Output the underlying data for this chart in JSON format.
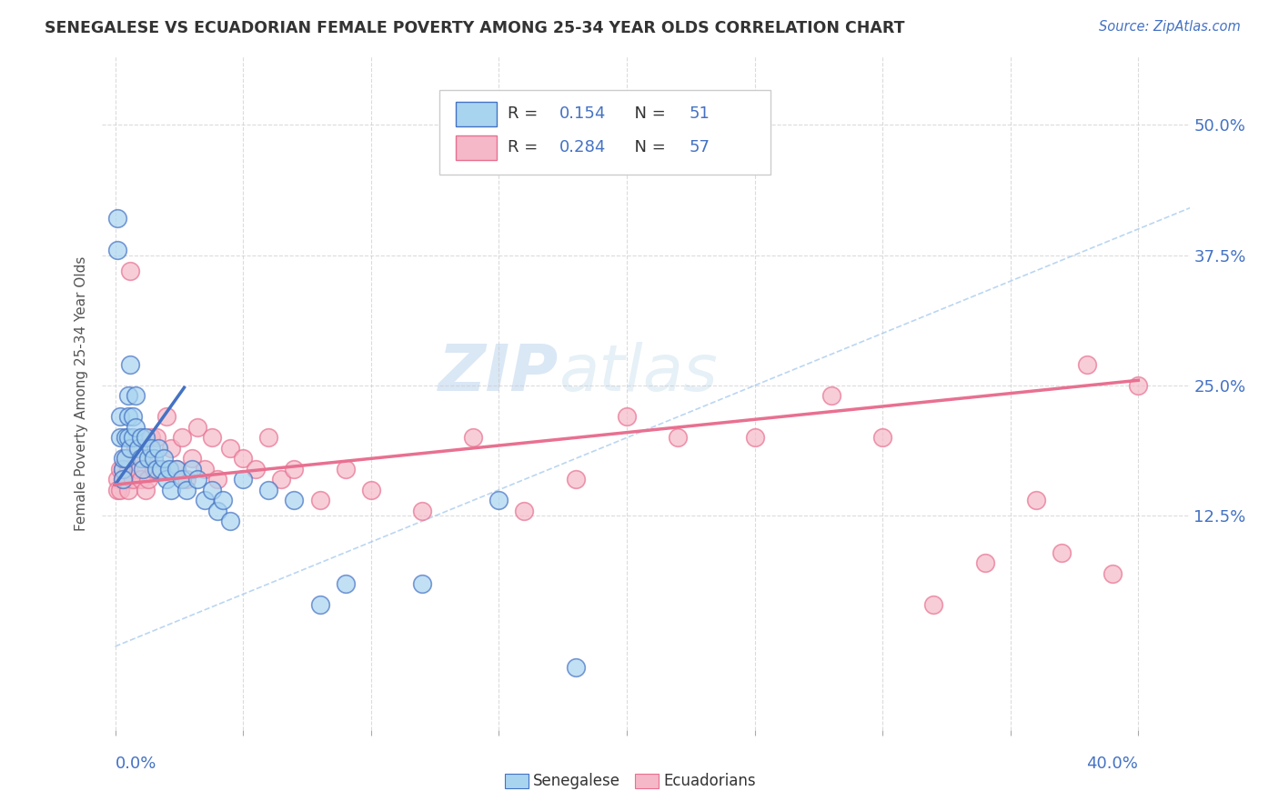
{
  "title": "SENEGALESE VS ECUADORIAN FEMALE POVERTY AMONG 25-34 YEAR OLDS CORRELATION CHART",
  "source": "Source: ZipAtlas.com",
  "ylabel": "Female Poverty Among 25-34 Year Olds",
  "ytick_labels": [
    "12.5%",
    "25.0%",
    "37.5%",
    "50.0%"
  ],
  "ytick_values": [
    0.125,
    0.25,
    0.375,
    0.5
  ],
  "xlim": [
    -0.005,
    0.42
  ],
  "ylim": [
    -0.08,
    0.565
  ],
  "color_sen_fill": "#A8D4F0",
  "color_sen_edge": "#4472C4",
  "color_ecu_fill": "#F5B8C8",
  "color_ecu_edge": "#E87090",
  "color_blue": "#4472C4",
  "color_pink": "#E87090",
  "color_diagonal": "#AACCEE",
  "watermark_zip": "ZIP",
  "watermark_atlas": "atlas",
  "background_color": "#FFFFFF",
  "grid_color": "#CCCCCC",
  "legend_R1": "R = ",
  "legend_R1_val": "0.154",
  "legend_N1": "  N = ",
  "legend_N1_val": "51",
  "legend_R2": "R = ",
  "legend_R2_val": "0.284",
  "legend_N2": "  N = ",
  "legend_N2_val": "57",
  "sen_x": [
    0.001,
    0.001,
    0.002,
    0.002,
    0.003,
    0.003,
    0.003,
    0.004,
    0.004,
    0.005,
    0.005,
    0.005,
    0.006,
    0.006,
    0.007,
    0.007,
    0.008,
    0.008,
    0.009,
    0.01,
    0.01,
    0.011,
    0.012,
    0.013,
    0.014,
    0.015,
    0.016,
    0.017,
    0.018,
    0.019,
    0.02,
    0.021,
    0.022,
    0.024,
    0.026,
    0.028,
    0.03,
    0.032,
    0.035,
    0.038,
    0.04,
    0.042,
    0.045,
    0.05,
    0.06,
    0.07,
    0.08,
    0.09,
    0.12,
    0.15,
    0.18
  ],
  "sen_y": [
    0.38,
    0.41,
    0.2,
    0.22,
    0.17,
    0.16,
    0.18,
    0.2,
    0.18,
    0.24,
    0.22,
    0.2,
    0.19,
    0.27,
    0.22,
    0.2,
    0.24,
    0.21,
    0.19,
    0.2,
    0.18,
    0.17,
    0.2,
    0.18,
    0.19,
    0.18,
    0.17,
    0.19,
    0.17,
    0.18,
    0.16,
    0.17,
    0.15,
    0.17,
    0.16,
    0.15,
    0.17,
    0.16,
    0.14,
    0.15,
    0.13,
    0.14,
    0.12,
    0.16,
    0.15,
    0.14,
    0.04,
    0.06,
    0.06,
    0.14,
    -0.02
  ],
  "ecu_x": [
    0.001,
    0.001,
    0.002,
    0.002,
    0.003,
    0.003,
    0.004,
    0.004,
    0.005,
    0.005,
    0.006,
    0.007,
    0.008,
    0.009,
    0.01,
    0.011,
    0.012,
    0.013,
    0.014,
    0.015,
    0.016,
    0.018,
    0.02,
    0.022,
    0.024,
    0.026,
    0.028,
    0.03,
    0.032,
    0.035,
    0.038,
    0.04,
    0.045,
    0.05,
    0.055,
    0.06,
    0.065,
    0.07,
    0.08,
    0.09,
    0.1,
    0.12,
    0.14,
    0.16,
    0.18,
    0.2,
    0.22,
    0.25,
    0.28,
    0.3,
    0.32,
    0.34,
    0.36,
    0.37,
    0.38,
    0.39,
    0.4
  ],
  "ecu_y": [
    0.16,
    0.15,
    0.17,
    0.15,
    0.17,
    0.16,
    0.18,
    0.16,
    0.17,
    0.15,
    0.36,
    0.16,
    0.19,
    0.17,
    0.16,
    0.18,
    0.15,
    0.16,
    0.2,
    0.17,
    0.2,
    0.17,
    0.22,
    0.19,
    0.17,
    0.2,
    0.16,
    0.18,
    0.21,
    0.17,
    0.2,
    0.16,
    0.19,
    0.18,
    0.17,
    0.2,
    0.16,
    0.17,
    0.14,
    0.17,
    0.15,
    0.13,
    0.2,
    0.13,
    0.16,
    0.22,
    0.2,
    0.2,
    0.24,
    0.2,
    0.04,
    0.08,
    0.14,
    0.09,
    0.27,
    0.07,
    0.25
  ]
}
